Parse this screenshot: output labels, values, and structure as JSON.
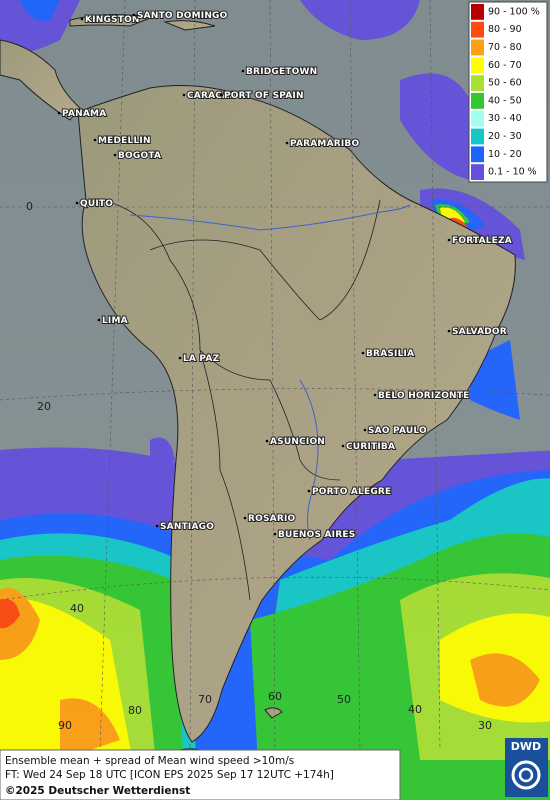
{
  "legend": {
    "items": [
      {
        "label": "90 - 100 %",
        "color": "#b40000"
      },
      {
        "label": "80 - 90",
        "color": "#ff4a10"
      },
      {
        "label": "70 - 80",
        "color": "#ffa014"
      },
      {
        "label": "60 - 70",
        "color": "#ffff00"
      },
      {
        "label": "50 - 60",
        "color": "#a8e032"
      },
      {
        "label": "40 - 50",
        "color": "#32c832"
      },
      {
        "label": "30 - 40",
        "color": "#a0fff0"
      },
      {
        "label": "20 - 30",
        "color": "#14c8c8"
      },
      {
        "label": "10 - 20",
        "color": "#1e64ff"
      },
      {
        "label": "0.1 - 10 %",
        "color": "#6450dc"
      }
    ]
  },
  "cities": [
    "KINGSTON",
    "SANTO DOMINGO",
    "BRIDGETOWN",
    "CARACAS",
    "PORT OF SPAIN",
    "PANAMA",
    "MEDELLIN",
    "BOGOTA",
    "PARAMARIBO",
    "QUITO",
    "FORTALEZA",
    "LIMA",
    "SALVADOR",
    "LA PAZ",
    "BRASILIA",
    "BELO HORIZONTE",
    "SAO PAULO",
    "ASUNCION",
    "CURITIBA",
    "PORTO ALEGRE",
    "ROSARIO",
    "SANTIAGO",
    "BUENOS AIRES"
  ],
  "grid_labels": [
    "0",
    "20",
    "40",
    "60",
    "50",
    "40",
    "30",
    "90",
    "80",
    "70"
  ],
  "footer": {
    "description": "Ensemble mean + spread of Mean wind speed >10m/s",
    "forecast_time": "FT: Wed 24 Sep 18 UTC [ICON EPS 2025 Sep 17 12UTC +174h]",
    "copyright": "©2025 Deutscher Wetterdienst"
  },
  "logo": "DWD"
}
